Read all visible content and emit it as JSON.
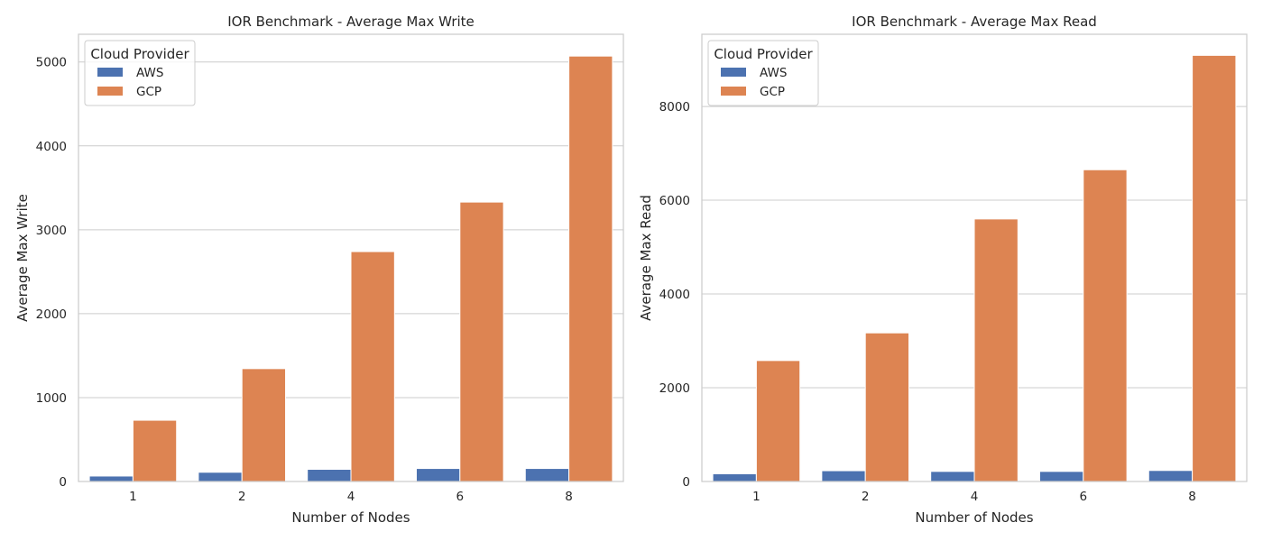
{
  "chart_data": [
    {
      "type": "bar",
      "title": "IOR Benchmark - Average Max Write",
      "xlabel": "Number of Nodes",
      "ylabel": "Average Max Write",
      "categories": [
        "1",
        "2",
        "4",
        "6",
        "8"
      ],
      "ylim": [
        0,
        5330
      ],
      "yticks": [
        0,
        1000,
        2000,
        3000,
        4000,
        5000
      ],
      "grid": true,
      "legend": {
        "title": "Cloud Provider",
        "placement": "top-left"
      },
      "series": [
        {
          "name": "AWS",
          "color": "#4c72b0",
          "values": [
            65,
            110,
            145,
            155,
            155
          ]
        },
        {
          "name": "GCP",
          "color": "#dd8452",
          "values": [
            730,
            1345,
            2740,
            3330,
            5070
          ]
        }
      ]
    },
    {
      "type": "bar",
      "title": "IOR Benchmark - Average Max Read",
      "xlabel": "Number of Nodes",
      "ylabel": "Average Max Read",
      "categories": [
        "1",
        "2",
        "4",
        "6",
        "8"
      ],
      "ylim": [
        0,
        9540
      ],
      "yticks": [
        0,
        2000,
        4000,
        6000,
        8000
      ],
      "grid": true,
      "legend": {
        "title": "Cloud Provider",
        "placement": "top-left"
      },
      "series": [
        {
          "name": "AWS",
          "color": "#4c72b0",
          "values": [
            165,
            230,
            215,
            215,
            235
          ]
        },
        {
          "name": "GCP",
          "color": "#dd8452",
          "values": [
            2580,
            3170,
            5600,
            6650,
            9090
          ]
        }
      ]
    }
  ]
}
